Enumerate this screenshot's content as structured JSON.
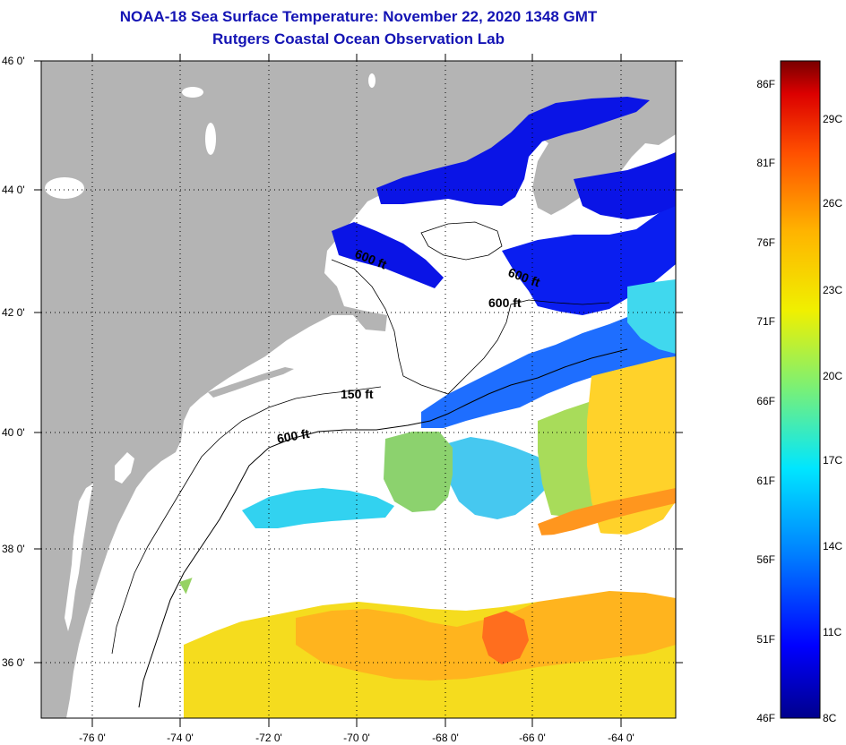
{
  "title_line1": "NOAA-18 Sea Surface Temperature:  November 22, 2020 1348 GMT",
  "title_line2": "Rutgers Coastal Ocean Observation Lab",
  "colors": {
    "land": "#b4b4b4",
    "title": "#1414b4",
    "frame": "#000000"
  },
  "map": {
    "lon_range": [
      -77,
      -63
    ],
    "lat_range": [
      35,
      46
    ],
    "lon_ticks": [
      "-76 0'",
      "-74 0'",
      "-72 0'",
      "-70 0'",
      "-68 0'",
      "-66 0'",
      "-64 0'"
    ],
    "lat_ticks": [
      "46 0'",
      "44 0'",
      "42 0'",
      "40 0'",
      "38 0'",
      "36 0'"
    ],
    "contour_labels": [
      "600 ft",
      "600 ft",
      "600 ft",
      "150 ft",
      "600 ft"
    ]
  },
  "colorbar": {
    "fahrenheit_labels": [
      "86F",
      "81F",
      "76F",
      "71F",
      "66F",
      "61F",
      "56F",
      "51F",
      "46F"
    ],
    "celsius_labels": [
      "29C",
      "26C",
      "23C",
      "20C",
      "17C",
      "14C",
      "11C",
      "8C"
    ],
    "range_F": [
      46,
      88
    ],
    "stops": [
      "#00008c",
      "#0000ff",
      "#0080ff",
      "#00e6ff",
      "#78f078",
      "#f0f000",
      "#ffb400",
      "#ff5000",
      "#dc0000",
      "#780000"
    ]
  }
}
